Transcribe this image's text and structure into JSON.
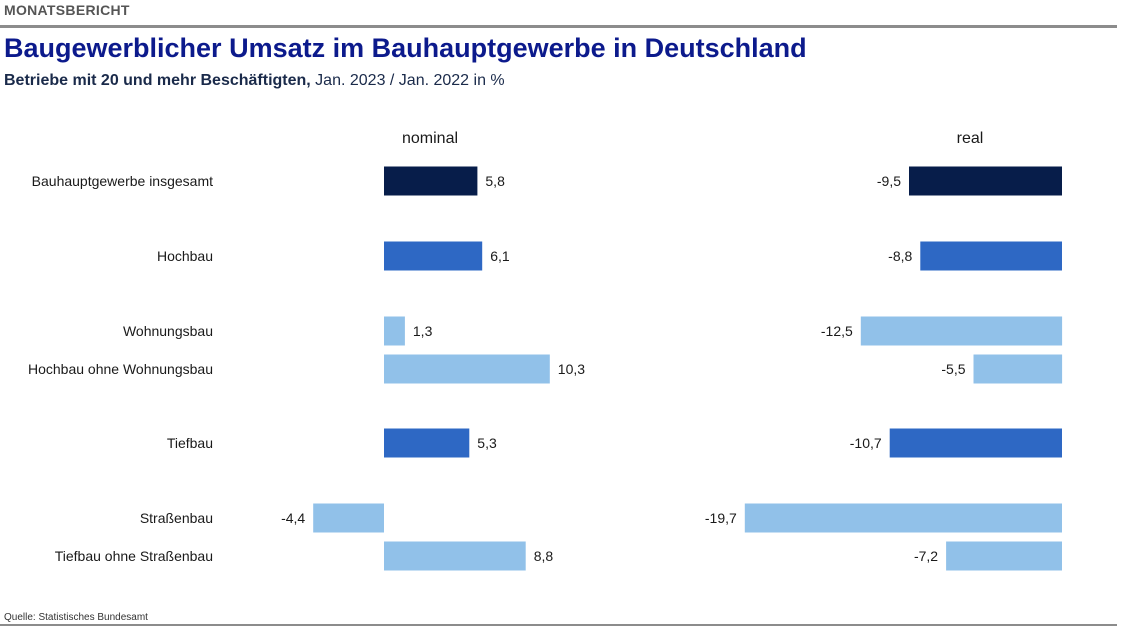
{
  "report": {
    "kicker": "MONATSBERICHT",
    "title": "Baugewerblicher Umsatz im Bauhauptgewerbe in Deutschland",
    "subtitle_bold": "Betriebe mit 20 und mehr Beschäftigten,",
    "subtitle_rest": " Jan. 2023 / Jan. 2022 in %",
    "source": "Quelle: Statistisches Bundesamt"
  },
  "colors": {
    "dark": "#071d4a",
    "medium": "#2e68c4",
    "light": "#91c1e9"
  },
  "chart_data": {
    "type": "bar",
    "orientation": "horizontal",
    "categories": [
      "Bauhauptgewerbe insgesamt",
      "Hochbau",
      "Wohnungsbau",
      "Hochbau ohne Wohnungsbau",
      "Tiefbau",
      "Straßenbau",
      "Tiefbau ohne Straßenbau"
    ],
    "category_levels": [
      "dark",
      "medium",
      "light",
      "light",
      "medium",
      "light",
      "light"
    ],
    "series": [
      {
        "name": "nominal",
        "values": [
          5.8,
          6.1,
          1.3,
          10.3,
          5.3,
          -4.4,
          8.8
        ],
        "labels": [
          "5,8",
          "6,1",
          "1,3",
          "10,3",
          "5,3",
          "-4,4",
          "8,8"
        ]
      },
      {
        "name": "real",
        "values": [
          -9.5,
          -8.8,
          -12.5,
          -5.5,
          -10.7,
          -19.7,
          -7.2
        ],
        "labels": [
          "-9,5",
          "-8,8",
          "-12,5",
          "-5,5",
          "-10,7",
          "-19,7",
          "-7,2"
        ]
      }
    ],
    "grid": false,
    "legend": "none"
  }
}
